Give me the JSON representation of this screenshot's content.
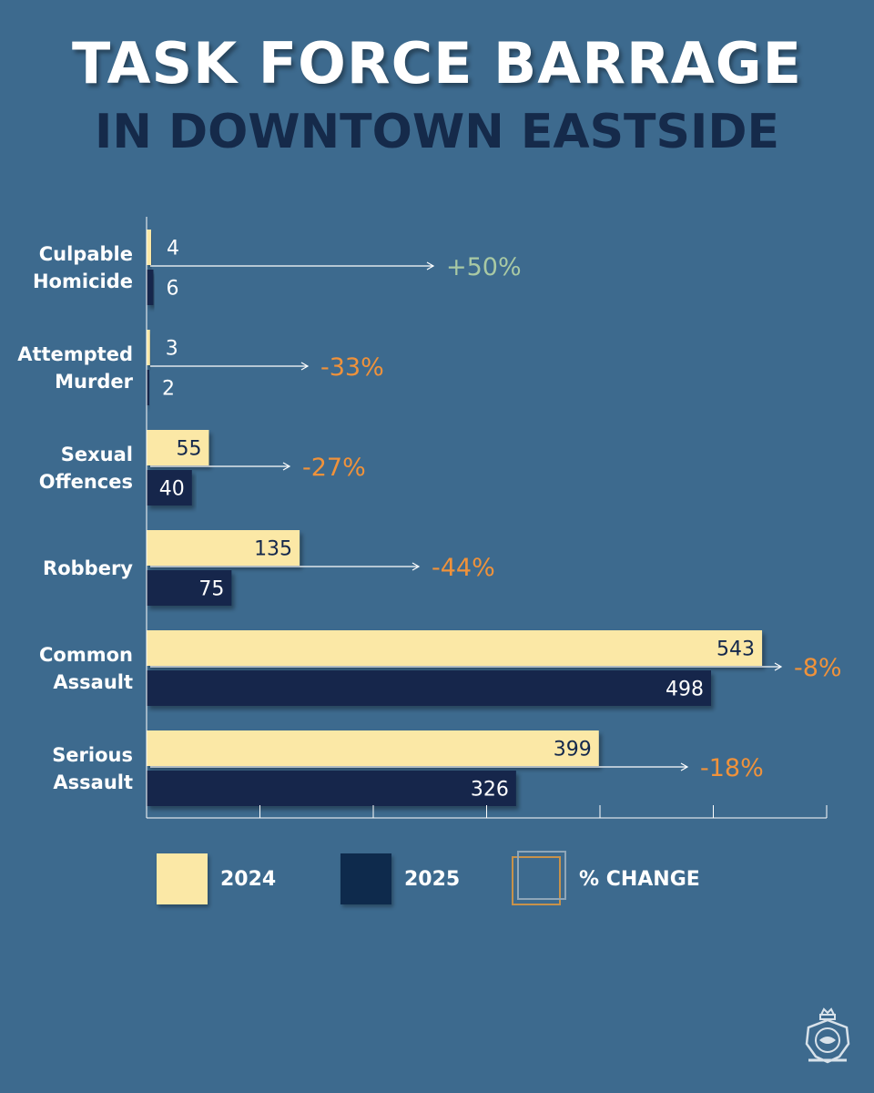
{
  "header": {
    "title": "TASK FORCE BARRAGE",
    "subtitle": "IN DOWNTOWN EASTSIDE"
  },
  "colors": {
    "background": "#3d6a8e",
    "year_2024": "#fbe8a6",
    "year_2025": "#14284c",
    "pct_positive": "#a9c9a4",
    "pct_negative": "#f0923a"
  },
  "chart_data": {
    "type": "bar",
    "orientation": "horizontal",
    "title": "TASK FORCE BARRAGE",
    "subtitle": "IN DOWNTOWN EASTSIDE",
    "categories": [
      [
        "Culpable",
        "Homicide"
      ],
      [
        "Attempted",
        "Murder"
      ],
      [
        "Sexual",
        "Offences"
      ],
      [
        "Robbery"
      ],
      [
        "Common",
        "Assault"
      ],
      [
        "Serious",
        "Assault"
      ]
    ],
    "series": [
      {
        "name": "2024",
        "values": [
          4,
          3,
          55,
          135,
          543,
          399
        ]
      },
      {
        "name": "2025",
        "values": [
          6,
          2,
          40,
          75,
          498,
          326
        ]
      }
    ],
    "pct_change": [
      "+50%",
      "-33%",
      "-27%",
      "-44%",
      "-8%",
      "-18%"
    ],
    "xlim": [
      0,
      600
    ],
    "grid": false,
    "legend_position": "bottom"
  },
  "legend": {
    "items": [
      {
        "label": "2024"
      },
      {
        "label": "2025"
      },
      {
        "label": "% CHANGE"
      }
    ]
  }
}
